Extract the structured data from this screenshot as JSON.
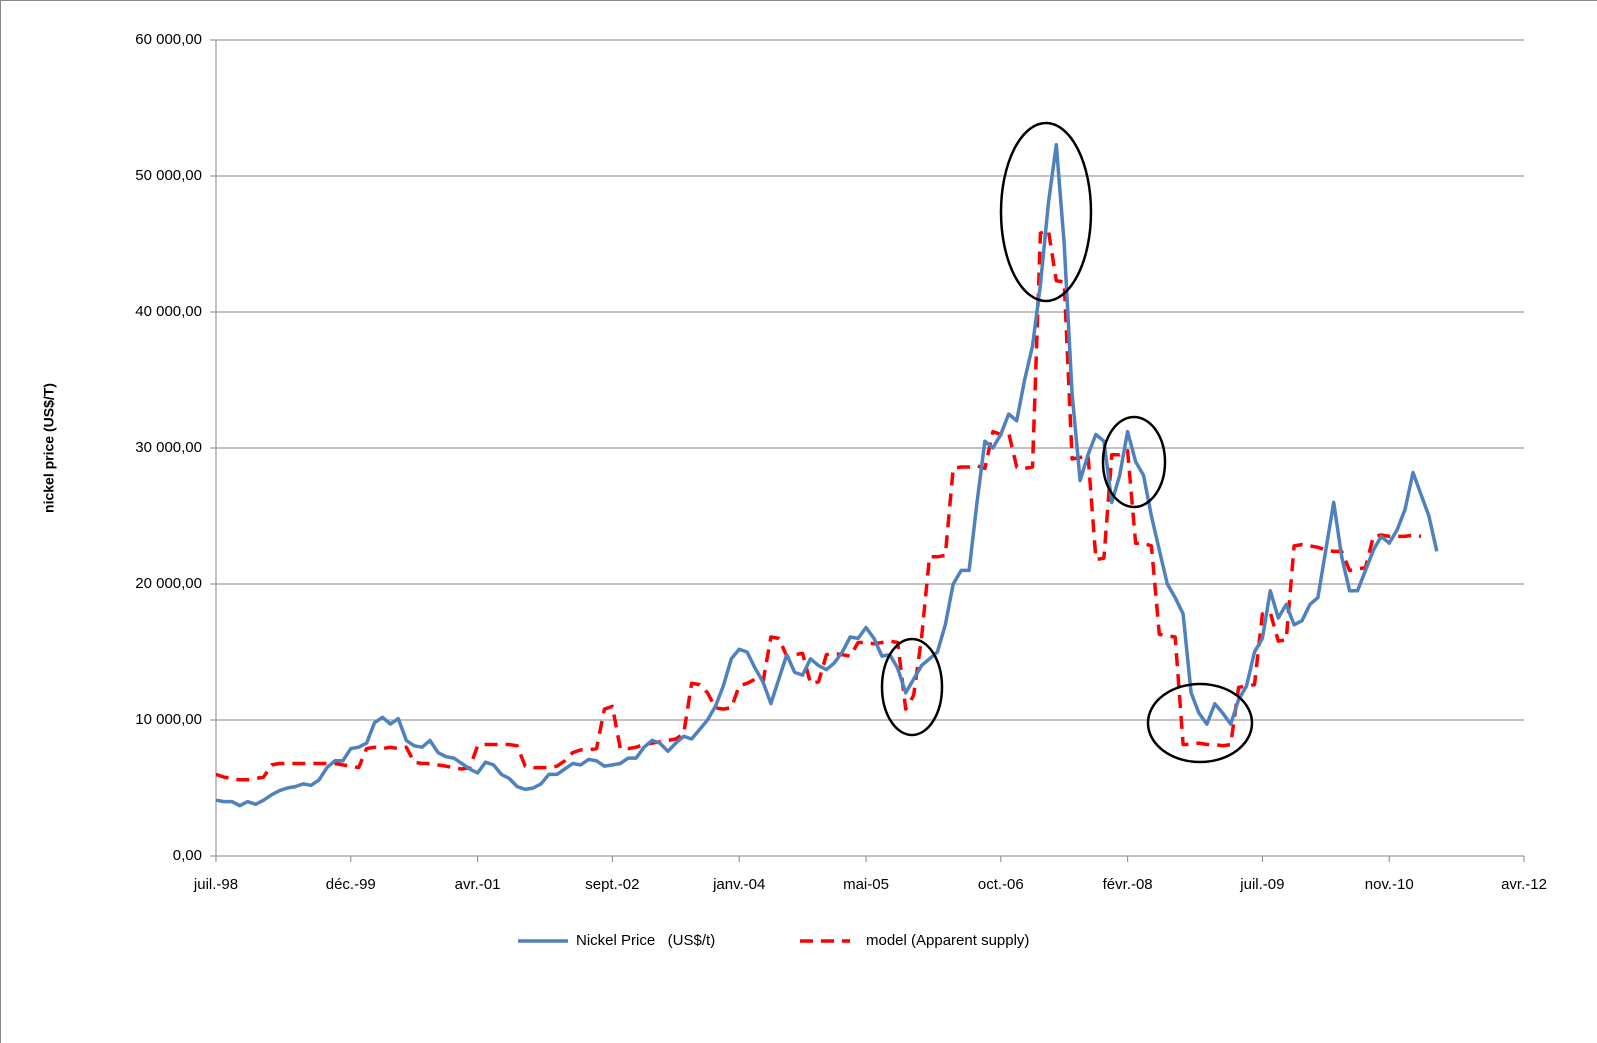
{
  "chart_data": {
    "type": "line",
    "ylabel": "nickel price (US$/T)",
    "x": [
      "1998-07",
      "1998-08",
      "1998-09",
      "1998-10",
      "1998-11",
      "1998-12",
      "1999-01",
      "1999-02",
      "1999-03",
      "1999-04",
      "1999-05",
      "1999-06",
      "1999-07",
      "1999-08",
      "1999-09",
      "1999-10",
      "1999-11",
      "1999-12",
      "2000-01",
      "2000-02",
      "2000-03",
      "2000-04",
      "2000-05",
      "2000-06",
      "2000-07",
      "2000-08",
      "2000-09",
      "2000-10",
      "2000-11",
      "2000-12",
      "2001-01",
      "2001-02",
      "2001-03",
      "2001-04",
      "2001-05",
      "2001-06",
      "2001-07",
      "2001-08",
      "2001-09",
      "2001-10",
      "2001-11",
      "2001-12",
      "2002-01",
      "2002-02",
      "2002-03",
      "2002-04",
      "2002-05",
      "2002-06",
      "2002-07",
      "2002-08",
      "2002-09",
      "2002-10",
      "2002-11",
      "2002-12",
      "2003-01",
      "2003-02",
      "2003-03",
      "2003-04",
      "2003-05",
      "2003-06",
      "2003-07",
      "2003-08",
      "2003-09",
      "2003-10",
      "2003-11",
      "2003-12",
      "2004-01",
      "2004-02",
      "2004-03",
      "2004-04",
      "2004-05",
      "2004-06",
      "2004-07",
      "2004-08",
      "2004-09",
      "2004-10",
      "2004-11",
      "2004-12",
      "2005-01",
      "2005-02",
      "2005-03",
      "2005-04",
      "2005-05",
      "2005-06",
      "2005-07",
      "2005-08",
      "2005-09",
      "2005-10",
      "2005-11",
      "2005-12",
      "2006-01",
      "2006-02",
      "2006-03",
      "2006-04",
      "2006-05",
      "2006-06",
      "2006-07",
      "2006-08",
      "2006-09",
      "2006-10",
      "2006-11",
      "2006-12",
      "2007-01",
      "2007-02",
      "2007-03",
      "2007-04",
      "2007-05",
      "2007-06",
      "2007-07",
      "2007-08",
      "2007-09",
      "2007-10",
      "2007-11",
      "2007-12",
      "2008-01",
      "2008-02",
      "2008-03",
      "2008-04",
      "2008-05",
      "2008-06",
      "2008-07",
      "2008-08",
      "2008-09",
      "2008-10",
      "2008-11",
      "2008-12",
      "2009-01",
      "2009-02",
      "2009-03",
      "2009-04",
      "2009-05",
      "2009-06",
      "2009-07",
      "2009-08",
      "2009-09",
      "2009-10",
      "2009-11",
      "2009-12",
      "2010-01",
      "2010-02",
      "2010-03",
      "2010-04",
      "2010-05",
      "2010-06",
      "2010-07",
      "2010-08",
      "2010-09",
      "2010-10",
      "2010-11",
      "2010-12",
      "2011-01",
      "2011-02",
      "2011-03",
      "2011-04",
      "2011-05"
    ],
    "series": [
      {
        "name": "Nickel Price   (US$/t)",
        "color": "#4f81bd",
        "dashed": false,
        "values": [
          4100,
          4000,
          4000,
          3700,
          4000,
          3800,
          4100,
          4500,
          4800,
          5000,
          5100,
          5300,
          5200,
          5600,
          6500,
          7000,
          7000,
          7900,
          8000,
          8300,
          9800,
          10200,
          9700,
          10100,
          8500,
          8100,
          8000,
          8500,
          7600,
          7300,
          7200,
          6800,
          6400,
          6100,
          6900,
          6700,
          6000,
          5700,
          5100,
          4900,
          5000,
          5300,
          6000,
          6000,
          6400,
          6800,
          6700,
          7100,
          7000,
          6600,
          6700,
          6800,
          7200,
          7200,
          8000,
          8500,
          8300,
          7700,
          8300,
          8800,
          8600,
          9300,
          10000,
          11000,
          12500,
          14500,
          15200,
          15000,
          13800,
          12800,
          11200,
          13000,
          14800,
          13500,
          13300,
          14500,
          14000,
          13700,
          14200,
          15000,
          16100,
          16000,
          16800,
          16000,
          14700,
          14800,
          13800,
          12000,
          13000,
          14000,
          14500,
          15000,
          17000,
          20000,
          21000,
          21000,
          26000,
          30500,
          30000,
          31000,
          32500,
          32000,
          35000,
          37500,
          42000,
          48000,
          52300,
          45000,
          34000,
          27600,
          29500,
          31000,
          30500,
          26000,
          28000,
          31200,
          29000,
          28000,
          25000,
          22500,
          20000,
          19000,
          17800,
          12000,
          10500,
          9700,
          11200,
          10500,
          9700,
          11500,
          12500,
          15000,
          16000,
          19500,
          17500,
          18500,
          17000,
          17300,
          18500,
          19000,
          22500,
          26000,
          22000,
          19500,
          19500,
          21000,
          22500,
          23500,
          23000,
          24000,
          25500,
          28200,
          26600,
          25000,
          22400
        ]
      },
      {
        "name": "model (Apparent supply)",
        "color": "#ff0000",
        "dashed": true,
        "values": [
          6000,
          5800,
          5700,
          5600,
          5600,
          5700,
          5800,
          6700,
          6800,
          6800,
          6800,
          6800,
          6800,
          6800,
          6800,
          6800,
          6700,
          6600,
          6500,
          7900,
          8000,
          7900,
          8000,
          7900,
          8000,
          6900,
          6800,
          6800,
          6700,
          6600,
          6500,
          6400,
          6500,
          8100,
          8200,
          8200,
          8200,
          8200,
          8100,
          6600,
          6500,
          6500,
          6500,
          6600,
          7000,
          7600,
          7800,
          7800,
          7900,
          10800,
          11000,
          7900,
          7900,
          8000,
          8200,
          8300,
          8400,
          8500,
          8600,
          9000,
          12700,
          12600,
          12000,
          10900,
          10800,
          10900,
          12500,
          12700,
          13000,
          12800,
          16100,
          16000,
          14700,
          14800,
          14900,
          12700,
          12800,
          14800,
          14900,
          14800,
          14700,
          15700,
          15700,
          15600,
          15700,
          15800,
          15700,
          10800,
          11800,
          16000,
          22000,
          22000,
          22100,
          28500,
          28600,
          28600,
          28700,
          28500,
          31200,
          31000,
          31100,
          28600,
          28500,
          28600,
          45800,
          46000,
          42300,
          42200,
          29200,
          29300,
          29500,
          21800,
          21900,
          29500,
          29500,
          29800,
          23000,
          23000,
          22800,
          16300,
          16200,
          16100,
          8200,
          8200,
          8300,
          8200,
          8200,
          8100,
          8200,
          12400,
          12500,
          12600,
          17800,
          17900,
          15800,
          15900,
          22800,
          22900,
          22800,
          22700,
          22500,
          22400,
          22400,
          21000,
          21100,
          21200,
          23500,
          23600,
          23500,
          23500,
          23500,
          23600,
          23500,
          null,
          null
        ]
      }
    ],
    "xlim": [
      "1998-07",
      "2012-04"
    ],
    "xticks": [
      {
        "value": "1998-07",
        "label": "juil.-98"
      },
      {
        "value": "1999-12",
        "label": "déc.-99"
      },
      {
        "value": "2001-04",
        "label": "avr.-01"
      },
      {
        "value": "2002-09",
        "label": "sept.-02"
      },
      {
        "value": "2004-01",
        "label": "janv.-04"
      },
      {
        "value": "2005-05",
        "label": "mai-05"
      },
      {
        "value": "2006-10",
        "label": "oct.-06"
      },
      {
        "value": "2008-02",
        "label": "févr.-08"
      },
      {
        "value": "2009-07",
        "label": "juil.-09"
      },
      {
        "value": "2010-11",
        "label": "nov.-10"
      },
      {
        "value": "2012-04",
        "label": "avr.-12"
      }
    ],
    "ylim": [
      0,
      60000
    ],
    "yticks": [
      {
        "value": 0,
        "label": "0,00"
      },
      {
        "value": 10000,
        "label": "10 000,00"
      },
      {
        "value": 20000,
        "label": "20 000,00"
      },
      {
        "value": 30000,
        "label": "30 000,00"
      },
      {
        "value": 40000,
        "label": "40 000,00"
      },
      {
        "value": 50000,
        "label": "50 000,00"
      },
      {
        "value": 60000,
        "label": "60 000,00"
      }
    ],
    "grid": true,
    "legend": "bottom"
  }
}
